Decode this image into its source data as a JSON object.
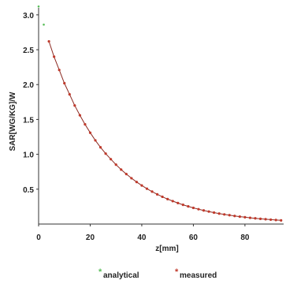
{
  "chart_data": {
    "type": "scatter",
    "xlabel": "z[mm]",
    "ylabel": "SAR[WG/KG]/W",
    "xlim": [
      0,
      95
    ],
    "ylim": [
      0,
      3.1
    ],
    "xticks": [
      "0",
      "20",
      "40",
      "60",
      "80"
    ],
    "yticks": [
      "0.5",
      "1.0",
      "1.5",
      "2.0",
      "2.5",
      "3.0"
    ],
    "grid": false,
    "legend": "bottom",
    "series": [
      {
        "name": "analytical",
        "color": "#5cbf5c",
        "x": [
          0,
          2,
          4,
          6,
          8,
          10,
          12,
          14,
          16,
          18,
          20,
          22,
          24,
          26,
          28,
          30,
          32,
          34,
          36,
          38,
          40,
          42,
          44,
          46,
          48,
          50,
          52,
          54,
          56,
          58,
          60,
          62,
          64,
          66,
          68,
          70,
          72,
          74,
          76,
          78,
          80,
          82,
          84,
          86,
          88,
          90,
          92,
          94
        ],
        "y": [
          3.12,
          2.86,
          2.62,
          2.4,
          2.21,
          2.02,
          1.86,
          1.7,
          1.56,
          1.43,
          1.31,
          1.2,
          1.1,
          1.01,
          0.93,
          0.852,
          0.781,
          0.717,
          0.657,
          0.603,
          0.553,
          0.507,
          0.465,
          0.426,
          0.391,
          0.358,
          0.329,
          0.301,
          0.276,
          0.253,
          0.232,
          0.213,
          0.195,
          0.179,
          0.164,
          0.15,
          0.138,
          0.127,
          0.116,
          0.106,
          0.098,
          0.089,
          0.082,
          0.075,
          0.069,
          0.063,
          0.058,
          0.053
        ]
      },
      {
        "name": "measured",
        "color": "#c0392b",
        "x": [
          4,
          6,
          8,
          10,
          12,
          14,
          16,
          18,
          20,
          22,
          24,
          26,
          28,
          30,
          32,
          34,
          36,
          38,
          40,
          42,
          44,
          46,
          48,
          50,
          52,
          54,
          56,
          58,
          60,
          62,
          64,
          66,
          68,
          70,
          72,
          74,
          76,
          78,
          80,
          82,
          84,
          86,
          88,
          90,
          92,
          94
        ],
        "y": [
          2.62,
          2.4,
          2.21,
          2.02,
          1.86,
          1.7,
          1.56,
          1.43,
          1.31,
          1.2,
          1.1,
          1.01,
          0.93,
          0.852,
          0.781,
          0.717,
          0.657,
          0.603,
          0.553,
          0.507,
          0.465,
          0.426,
          0.391,
          0.358,
          0.329,
          0.301,
          0.276,
          0.253,
          0.232,
          0.213,
          0.195,
          0.179,
          0.164,
          0.15,
          0.138,
          0.127,
          0.116,
          0.106,
          0.098,
          0.089,
          0.082,
          0.075,
          0.069,
          0.063,
          0.058,
          0.053
        ]
      }
    ]
  }
}
